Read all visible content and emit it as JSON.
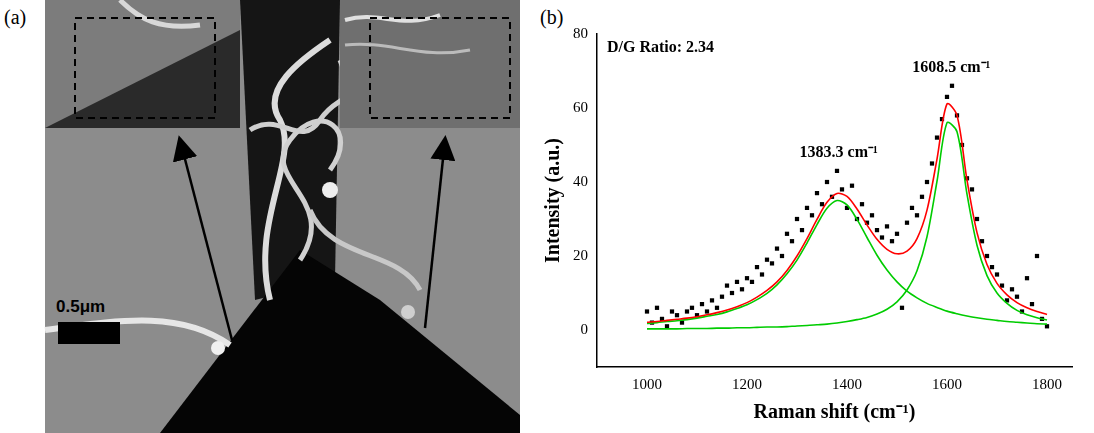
{
  "image_panel": {
    "label": "(a)",
    "scale_bar": "0.5μm"
  },
  "chart_data": {
    "type": "scatter",
    "panel_label": "(b)",
    "x_label": "Raman shift (cm⁻¹)",
    "y_label": "Intensity (a.u.)",
    "xlim": [
      900,
      1850
    ],
    "xticks": [
      1000,
      1200,
      1400,
      1600,
      1800
    ],
    "ylim": [
      -10,
      80
    ],
    "yticks": [
      0,
      20,
      40,
      60,
      80
    ],
    "grid": false,
    "annotations": [
      {
        "text": "D/G Ratio: 2.34"
      },
      {
        "text": "1383.3 cm⁻¹",
        "x": 1383.3
      },
      {
        "text": "1608.5 cm⁻¹",
        "x": 1608.5
      }
    ],
    "series": [
      {
        "type": "scatter",
        "marker": "square",
        "color": "#000000",
        "x": [
          1000,
          1010,
          1020,
          1030,
          1040,
          1050,
          1060,
          1070,
          1080,
          1090,
          1100,
          1110,
          1120,
          1130,
          1140,
          1150,
          1160,
          1170,
          1180,
          1190,
          1200,
          1210,
          1220,
          1230,
          1240,
          1250,
          1260,
          1270,
          1280,
          1290,
          1300,
          1310,
          1320,
          1330,
          1340,
          1350,
          1360,
          1370,
          1380,
          1390,
          1400,
          1410,
          1420,
          1430,
          1440,
          1450,
          1460,
          1470,
          1480,
          1490,
          1500,
          1510,
          1520,
          1530,
          1540,
          1550,
          1560,
          1570,
          1580,
          1590,
          1600,
          1610,
          1620,
          1630,
          1640,
          1650,
          1660,
          1670,
          1680,
          1690,
          1700,
          1710,
          1720,
          1730,
          1740,
          1750,
          1760,
          1770,
          1780,
          1790,
          1800
        ],
        "values": [
          5,
          2,
          6,
          3,
          1,
          5,
          4,
          2,
          5,
          6,
          4,
          7,
          5,
          8,
          6,
          9,
          12,
          10,
          13,
          11,
          14,
          13,
          17,
          15,
          19,
          18,
          22,
          20,
          26,
          24,
          30,
          27,
          33,
          31,
          37,
          34,
          40,
          36,
          43,
          38,
          33,
          39,
          30,
          34,
          29,
          31,
          27,
          25,
          28,
          24,
          26,
          6,
          29,
          33,
          31,
          36,
          40,
          45,
          52,
          57,
          63,
          66,
          58,
          50,
          41,
          38,
          30,
          24,
          20,
          17,
          15,
          12,
          8,
          11,
          9,
          5,
          14,
          7,
          20,
          3,
          1
        ]
      },
      {
        "type": "line",
        "line_style": "solid",
        "color": "#ff0000",
        "x": [
          1000,
          1020,
          1040,
          1060,
          1080,
          1100,
          1120,
          1140,
          1160,
          1180,
          1200,
          1220,
          1240,
          1260,
          1280,
          1300,
          1320,
          1340,
          1360,
          1380,
          1400,
          1420,
          1440,
          1460,
          1480,
          1500,
          1520,
          1540,
          1560,
          1580,
          1600,
          1620,
          1640,
          1660,
          1680,
          1700,
          1720,
          1740,
          1760,
          1780,
          1800
        ],
        "values": [
          2.1,
          2.3,
          2.6,
          2.9,
          3.2,
          3.6,
          4.1,
          4.7,
          5.4,
          6.3,
          7.4,
          8.9,
          10.7,
          13.0,
          16.1,
          20.0,
          24.7,
          29.9,
          34.5,
          36.9,
          36.1,
          32.7,
          28.4,
          24.5,
          21.8,
          20.6,
          21.3,
          24.7,
          32.4,
          46.2,
          61.1,
          58.0,
          40.5,
          26.3,
          17.7,
          12.6,
          9.5,
          7.4,
          6.0,
          5.0,
          4.2
        ]
      },
      {
        "type": "line",
        "line_style": "solid",
        "color": "#00cc00",
        "x": [
          1000,
          1020,
          1040,
          1060,
          1080,
          1100,
          1120,
          1140,
          1160,
          1180,
          1200,
          1220,
          1240,
          1260,
          1280,
          1300,
          1320,
          1340,
          1360,
          1380,
          1400,
          1420,
          1440,
          1460,
          1480,
          1500,
          1520,
          1540,
          1560,
          1580,
          1600,
          1620,
          1640,
          1660,
          1680,
          1700,
          1720,
          1740,
          1760,
          1780,
          1800
        ],
        "values": [
          1.8,
          2.0,
          2.3,
          2.5,
          2.8,
          3.2,
          3.7,
          4.2,
          4.9,
          5.8,
          6.8,
          8.2,
          9.9,
          12.2,
          15.2,
          18.9,
          23.5,
          28.5,
          32.9,
          35.0,
          33.8,
          29.9,
          25.0,
          20.2,
          16.2,
          13.0,
          10.5,
          8.7,
          7.2,
          6.1,
          5.1,
          4.4,
          3.8,
          3.3,
          2.9,
          2.6,
          2.3,
          2.1,
          1.9,
          1.7,
          1.6
        ]
      },
      {
        "type": "line",
        "line_style": "solid",
        "color": "#00cc00",
        "x": [
          1000,
          1020,
          1040,
          1060,
          1080,
          1100,
          1120,
          1140,
          1160,
          1180,
          1200,
          1220,
          1240,
          1260,
          1280,
          1300,
          1320,
          1340,
          1360,
          1380,
          1400,
          1420,
          1440,
          1460,
          1480,
          1500,
          1520,
          1540,
          1560,
          1580,
          1600,
          1620,
          1640,
          1660,
          1680,
          1700,
          1720,
          1740,
          1760,
          1780,
          1800
        ],
        "values": [
          0.3,
          0.3,
          0.3,
          0.3,
          0.4,
          0.4,
          0.4,
          0.5,
          0.5,
          0.6,
          0.6,
          0.7,
          0.8,
          0.8,
          0.9,
          1.1,
          1.2,
          1.4,
          1.6,
          1.9,
          2.3,
          2.8,
          3.4,
          4.3,
          5.6,
          7.6,
          10.8,
          16.0,
          25.2,
          40.2,
          56.0,
          53.6,
          36.7,
          22.9,
          14.7,
          10.0,
          7.2,
          5.3,
          4.1,
          3.3,
          2.7
        ]
      }
    ]
  }
}
